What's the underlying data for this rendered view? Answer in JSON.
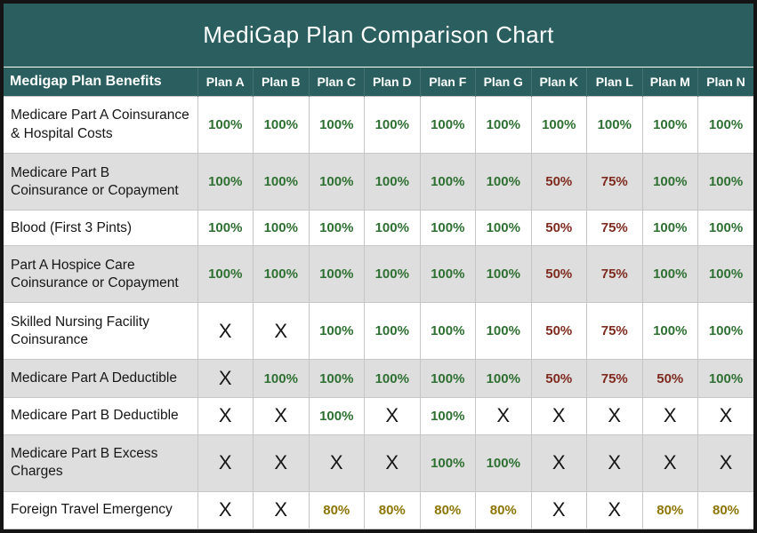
{
  "colors": {
    "frame_border": "#141414",
    "header_bg": "#2b5f5f",
    "header_text": "#ffffff",
    "row_bg": "#ffffff",
    "row_alt_bg": "#dedede",
    "grid_line": "#c6c6c6",
    "full_coverage_green": "#2e7031",
    "partial_coverage_red": "#7f2a1e",
    "travel_coverage_gold": "#8e7505",
    "not_covered_black": "#161616"
  },
  "chart_data": {
    "type": "table",
    "title": "MediGap Plan Comparison Chart",
    "benefit_column_header": "Medigap Plan Benefits",
    "plan_columns": [
      "Plan A",
      "Plan B",
      "Plan C",
      "Plan D",
      "Plan F",
      "Plan G",
      "Plan K",
      "Plan L",
      "Plan M",
      "Plan N"
    ],
    "rows": [
      {
        "benefit": "Medicare Part A Coinsurance & Hospital Costs",
        "values": [
          "100%",
          "100%",
          "100%",
          "100%",
          "100%",
          "100%",
          "100%",
          "100%",
          "100%",
          "100%"
        ]
      },
      {
        "benefit": "Medicare Part B Coinsurance or Copayment",
        "values": [
          "100%",
          "100%",
          "100%",
          "100%",
          "100%",
          "100%",
          "50%",
          "75%",
          "100%",
          "100%"
        ]
      },
      {
        "benefit": "Blood (First 3 Pints)",
        "values": [
          "100%",
          "100%",
          "100%",
          "100%",
          "100%",
          "100%",
          "50%",
          "75%",
          "100%",
          "100%"
        ]
      },
      {
        "benefit": "Part A Hospice Care Coinsurance or Copayment",
        "values": [
          "100%",
          "100%",
          "100%",
          "100%",
          "100%",
          "100%",
          "50%",
          "75%",
          "100%",
          "100%"
        ]
      },
      {
        "benefit": "Skilled Nursing Facility Coinsurance",
        "values": [
          "X",
          "X",
          "100%",
          "100%",
          "100%",
          "100%",
          "50%",
          "75%",
          "100%",
          "100%"
        ]
      },
      {
        "benefit": "Medicare Part A Deductible",
        "values": [
          "X",
          "100%",
          "100%",
          "100%",
          "100%",
          "100%",
          "50%",
          "75%",
          "50%",
          "100%"
        ]
      },
      {
        "benefit": "Medicare Part B Deductible",
        "values": [
          "X",
          "X",
          "100%",
          "X",
          "100%",
          "X",
          "X",
          "X",
          "X",
          "X"
        ]
      },
      {
        "benefit": "Medicare Part B Excess Charges",
        "values": [
          "X",
          "X",
          "X",
          "X",
          "100%",
          "100%",
          "X",
          "X",
          "X",
          "X"
        ]
      },
      {
        "benefit": "Foreign Travel Emergency",
        "values": [
          "X",
          "X",
          "80%",
          "80%",
          "80%",
          "80%",
          "X",
          "X",
          "80%",
          "80%"
        ]
      }
    ]
  }
}
